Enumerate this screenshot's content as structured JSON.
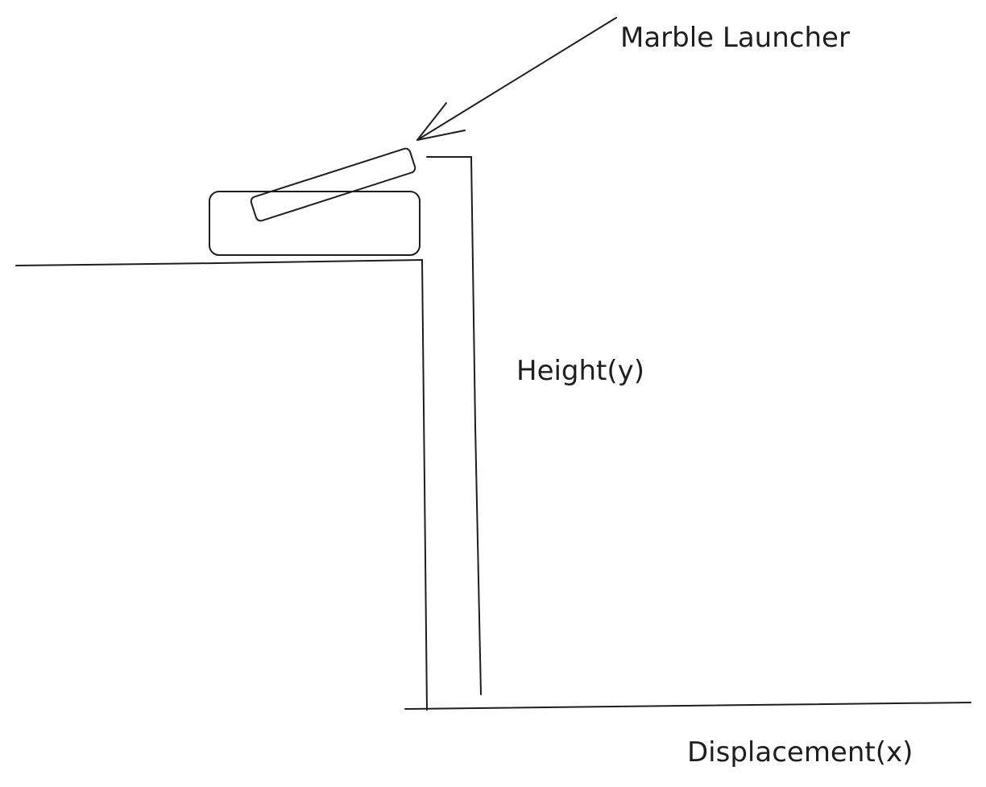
{
  "labels": {
    "launcher": "Marble Launcher",
    "height": "Height(y)",
    "displacement": "Displacement(x)"
  },
  "colors": {
    "stroke": "#1e1e1e",
    "background": "#ffffff"
  }
}
